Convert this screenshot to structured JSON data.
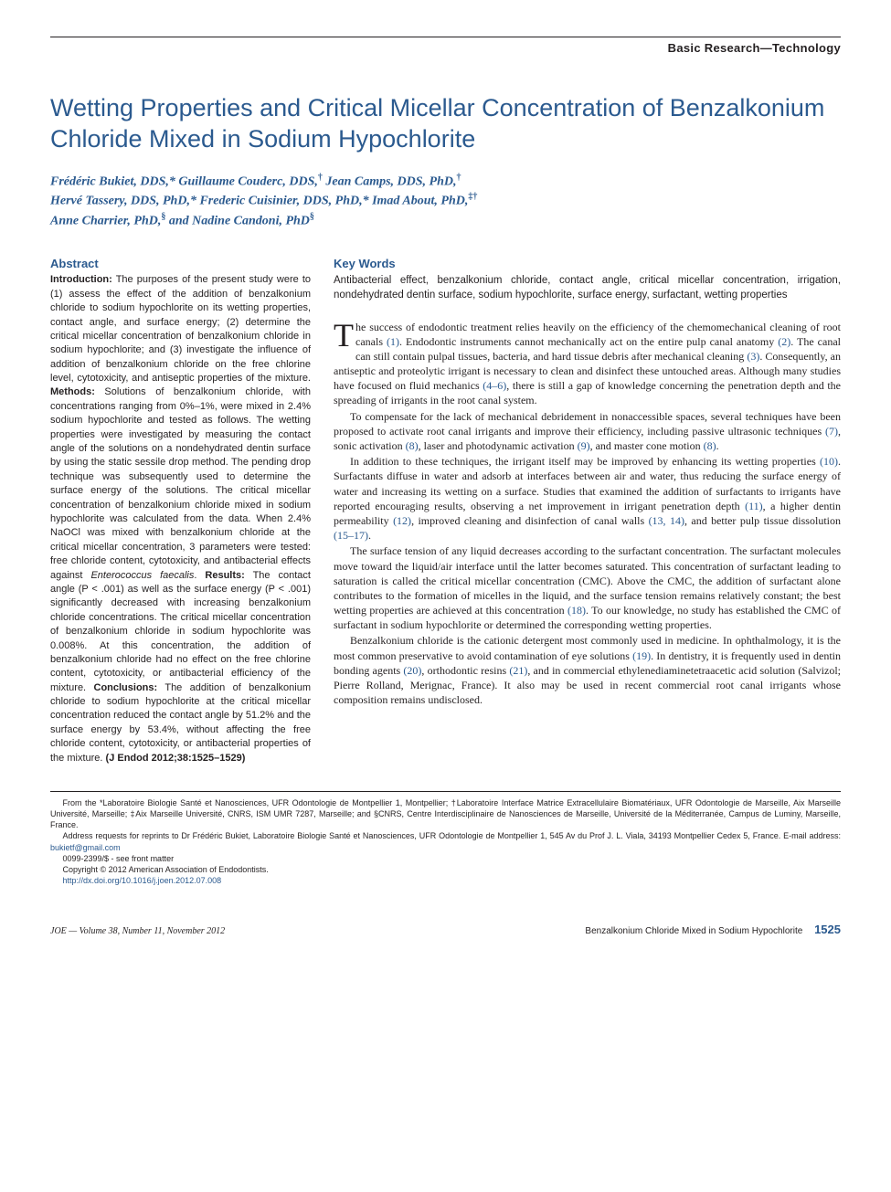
{
  "header": {
    "section_label": "Basic Research—Technology"
  },
  "title": "Wetting Properties and Critical Micellar Concentration of Benzalkonium Chloride Mixed in Sodium Hypochlorite",
  "authors_html": "Frédéric Bukiet, DDS,* Guillaume Couderc, DDS,<sup>†</sup> Jean Camps, DDS, PhD,<sup>†</sup><br>Hervé Tassery, DDS, PhD,* Frederic Cuisinier, DDS, PhD,* Imad About, PhD,<sup>‡†</sup><br>Anne Charrier, PhD,<sup>§</sup> and Nadine Candoni, PhD<sup>§</sup>",
  "abstract": {
    "heading": "Abstract",
    "intro_label": "Introduction:",
    "intro": " The purposes of the present study were to (1) assess the effect of the addition of benzalkonium chloride to sodium hypochlorite on its wetting properties, contact angle, and surface energy; (2) determine the critical micellar concentration of benzalkonium chloride in sodium hypochlorite; and (3) investigate the influence of addition of benzalkonium chloride on the free chlorine level, cytotoxicity, and antiseptic properties of the mixture. ",
    "methods_label": "Methods:",
    "methods": " Solutions of benzalkonium chloride, with concentrations ranging from 0%–1%, were mixed in 2.4% sodium hypochlorite and tested as follows. The wetting properties were investigated by measuring the contact angle of the solutions on a nondehydrated dentin surface by using the static sessile drop method. The pending drop technique was subsequently used to determine the surface energy of the solutions. The critical micellar concentration of benzalkonium chloride mixed in sodium hypochlorite was calculated from the data. When 2.4% NaOCl was mixed with benzalkonium chloride at the critical micellar concentration, 3 parameters were tested: free chloride content, cytotoxicity, and antibacterial effects against ",
    "methods_italic": "Enterococcus faecalis",
    "methods_tail": ". ",
    "results_label": "Results:",
    "results": " The contact angle (P < .001) as well as the surface energy (P < .001) significantly decreased with increasing benzalkonium chloride concentrations. The critical micellar concentration of benzalkonium chloride in sodium hypochlorite was 0.008%. At this concentration, the addition of benzalkonium chloride had no effect on the free chlorine content, cytotoxicity, or antibacterial efficiency of the mixture. ",
    "conclusions_label": "Conclusions:",
    "conclusions": " The addition of benzalkonium chloride to sodium hypochlorite at the critical micellar concentration reduced the contact angle by 51.2% and the surface energy by 53.4%, without affecting the free chloride content, cytotoxicity, or antibacterial properties of the mixture. ",
    "citation": "(J Endod 2012;38:1525–1529)"
  },
  "keywords": {
    "heading": "Key Words",
    "text": "Antibacterial effect, benzalkonium chloride, contact angle, critical micellar concentration, irrigation, nondehydrated dentin surface, sodium hypochlorite, surface energy, surfactant, wetting properties"
  },
  "body": {
    "p1_dropcap": "T",
    "p1": "he success of endodontic treatment relies heavily on the efficiency of the chemomechanical cleaning of root canals (1). Endodontic instruments cannot mechanically act on the entire pulp canal anatomy (2). The canal can still contain pulpal tissues, bacteria, and hard tissue debris after mechanical cleaning (3). Consequently, an antiseptic and proteolytic irrigant is necessary to clean and disinfect these untouched areas. Although many studies have focused on fluid mechanics (4–6), there is still a gap of knowledge concerning the penetration depth and the spreading of irrigants in the root canal system.",
    "p2": "To compensate for the lack of mechanical debridement in nonaccessible spaces, several techniques have been proposed to activate root canal irrigants and improve their efficiency, including passive ultrasonic techniques (7), sonic activation (8), laser and photodynamic activation (9), and master cone motion (8).",
    "p3": "In addition to these techniques, the irrigant itself may be improved by enhancing its wetting properties (10). Surfactants diffuse in water and adsorb at interfaces between air and water, thus reducing the surface energy of water and increasing its wetting on a surface. Studies that examined the addition of surfactants to irrigants have reported encouraging results, observing a net improvement in irrigant penetration depth (11), a higher dentin permeability (12), improved cleaning and disinfection of canal walls (13, 14), and better pulp tissue dissolution (15–17).",
    "p4": "The surface tension of any liquid decreases according to the surfactant concentration. The surfactant molecules move toward the liquid/air interface until the latter becomes saturated. This concentration of surfactant leading to saturation is called the critical micellar concentration (CMC). Above the CMC, the addition of surfactant alone contributes to the formation of micelles in the liquid, and the surface tension remains relatively constant; the best wetting properties are achieved at this concentration (18). To our knowledge, no study has established the CMC of surfactant in sodium hypochlorite or determined the corresponding wetting properties.",
    "p5": "Benzalkonium chloride is the cationic detergent most commonly used in medicine. In ophthalmology, it is the most common preservative to avoid contamination of eye solutions (19). In dentistry, it is frequently used in dentin bonding agents (20), orthodontic resins (21), and in commercial ethylenediaminetetraacetic acid solution (Salvizol; Pierre Rolland, Merignac, France). It also may be used in recent commercial root canal irrigants whose composition remains undisclosed."
  },
  "footnotes": {
    "affil": "From the *Laboratoire Biologie Santé et Nanosciences, UFR Odontologie de Montpellier 1, Montpellier; †Laboratoire Interface Matrice Extracellulaire Biomatériaux, UFR Odontologie de Marseille, Aix Marseille Université, Marseille; ‡Aix Marseille Université, CNRS, ISM UMR 7287, Marseille; and §CNRS, Centre Interdisciplinaire de Nanosciences de Marseille, Université de la Méditerranée, Campus de Luminy, Marseille, France.",
    "corr": "Address requests for reprints to Dr Frédéric Bukiet, Laboratoire Biologie Santé et Nanosciences, UFR Odontologie de Montpellier 1, 545 Av du Prof J. L. Viala, 34193 Montpellier Cedex 5, France. E-mail address: ",
    "email": "bukietf@gmail.com",
    "issn": "0099-2399/$ - see front matter",
    "copyright": "Copyright © 2012 American Association of Endodontists.",
    "doi_url": "http://dx.doi.org/10.1016/j.joen.2012.07.008"
  },
  "footer": {
    "left": "JOE — Volume 38, Number 11, November 2012",
    "right": "Benzalkonium Chloride Mixed in Sodium Hypochlorite",
    "page": "1525"
  },
  "colors": {
    "brand_blue": "#2b5a8f",
    "text": "#231f20",
    "background": "#ffffff"
  },
  "fonts": {
    "serif": "Georgia, Times New Roman, serif",
    "sans": "Arial, Helvetica, sans-serif",
    "title_size_pt": 27,
    "body_size_pt": 12,
    "abstract_size_pt": 11,
    "footnote_size_pt": 9
  }
}
